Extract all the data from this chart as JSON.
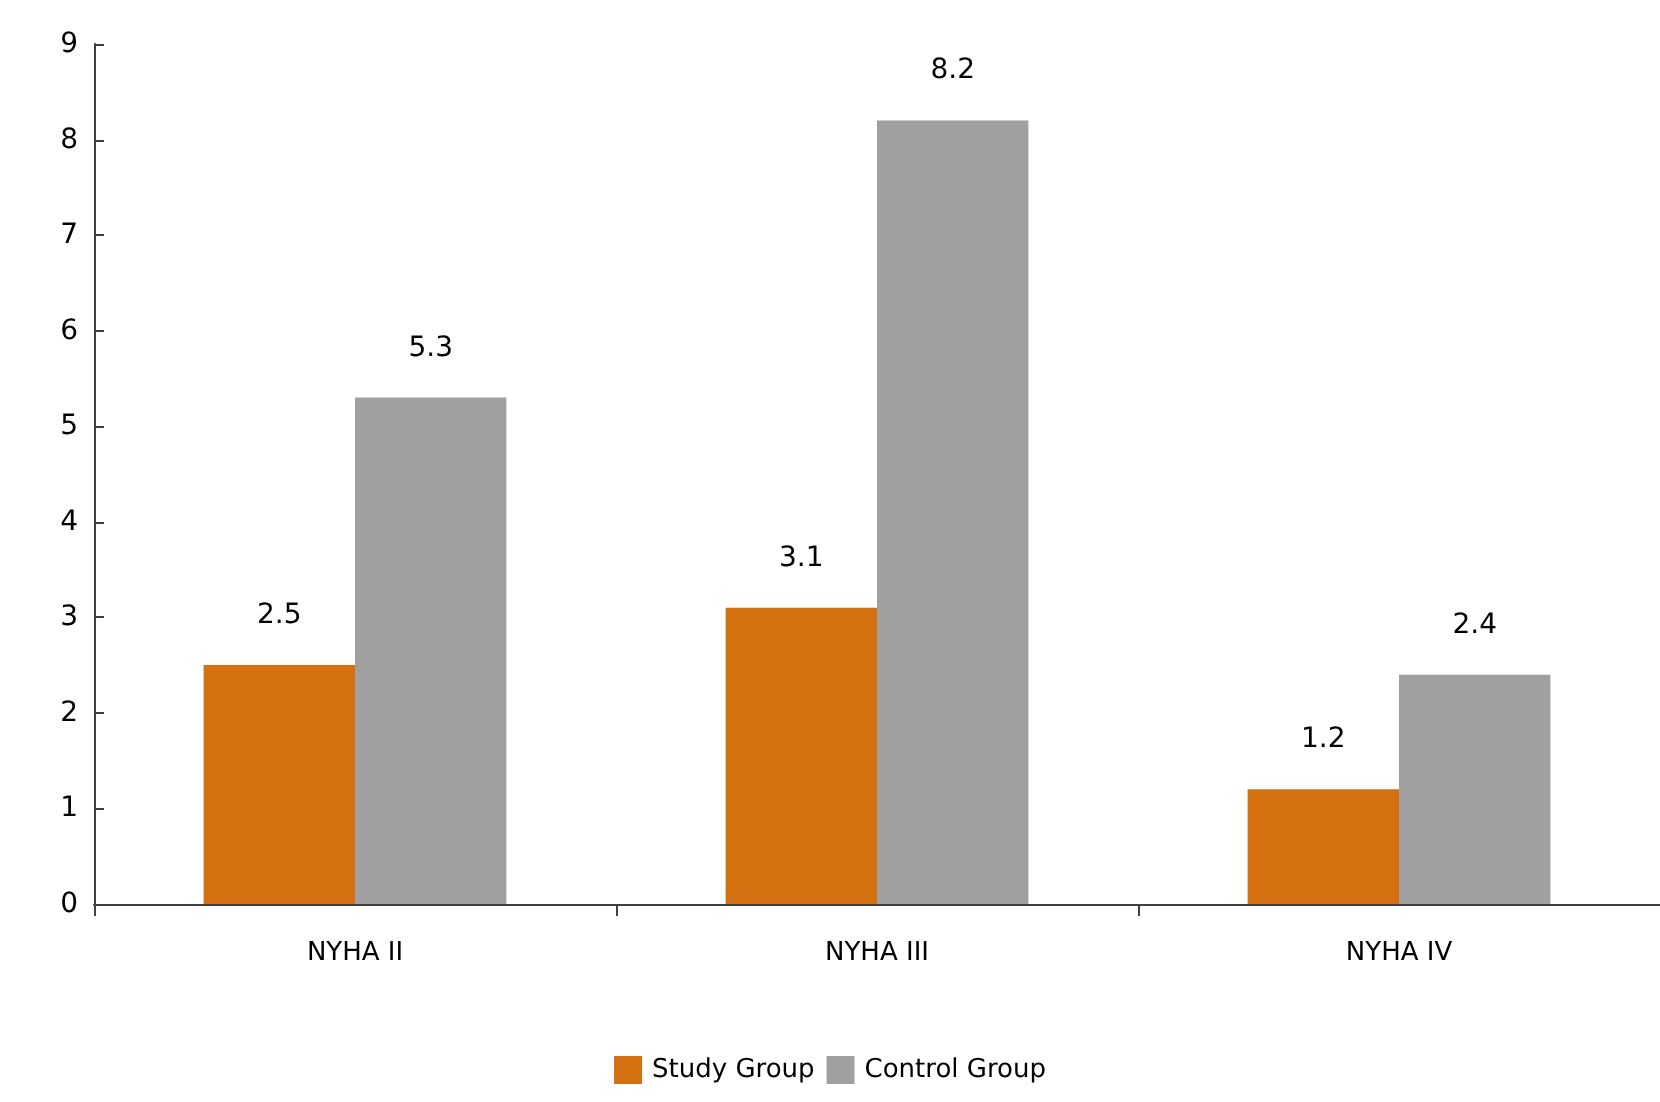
{
  "chart_data": {
    "type": "bar",
    "categories": [
      "NYHA II",
      "NYHA III",
      "NYHA IV"
    ],
    "series": [
      {
        "name": "Study Group",
        "color": "#d4700f",
        "values": [
          2.5,
          3.1,
          1.2
        ]
      },
      {
        "name": "Control Group",
        "color": "#a0a0a0",
        "values": [
          5.3,
          8.2,
          2.4
        ]
      }
    ],
    "ylim": [
      0,
      9
    ],
    "yticks": [
      0,
      1,
      2,
      3,
      4,
      5,
      6,
      7,
      8,
      9
    ],
    "grid": false,
    "legend": "bottom",
    "data_labels": true
  }
}
